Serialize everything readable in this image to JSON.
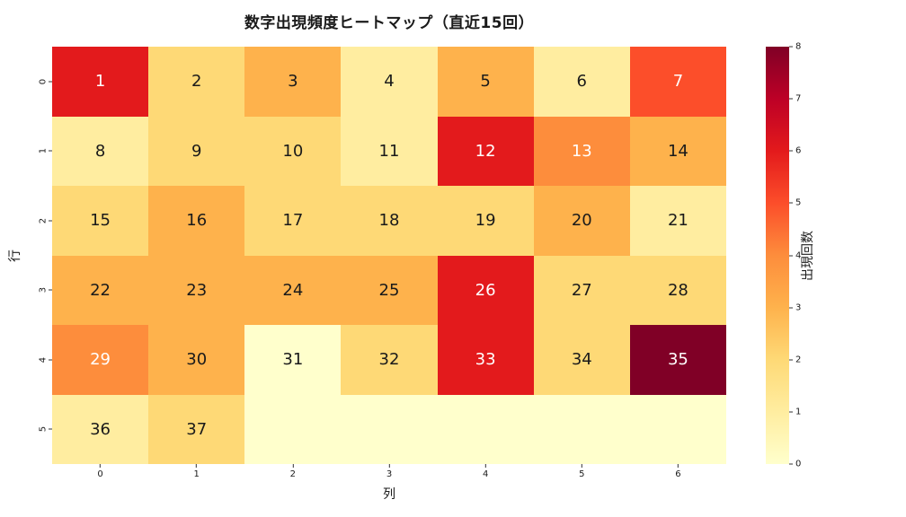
{
  "title": "数字出現頻度ヒートマップ（直近15回）",
  "background_color": "#ffffff",
  "tick_color": "#333333",
  "chart_data": {
    "type": "heatmap",
    "title": "数字出現頻度ヒートマップ（直近15回）",
    "xlabel": "列",
    "ylabel": "行",
    "x_tick_labels": [
      "0",
      "1",
      "2",
      "3",
      "4",
      "5",
      "6"
    ],
    "y_tick_labels": [
      "0",
      "1",
      "2",
      "3",
      "4",
      "5"
    ],
    "annotations": [
      [
        "1",
        "2",
        "3",
        "4",
        "5",
        "6",
        "7"
      ],
      [
        "8",
        "9",
        "10",
        "11",
        "12",
        "13",
        "14"
      ],
      [
        "15",
        "16",
        "17",
        "18",
        "19",
        "20",
        "21"
      ],
      [
        "22",
        "23",
        "24",
        "25",
        "26",
        "27",
        "28"
      ],
      [
        "29",
        "30",
        "31",
        "32",
        "33",
        "34",
        "35"
      ],
      [
        "36",
        "37",
        "",
        "",
        "",
        "",
        ""
      ]
    ],
    "values": [
      [
        6,
        2,
        3,
        1,
        3,
        1,
        5
      ],
      [
        1,
        2,
        2,
        1,
        6,
        4,
        3
      ],
      [
        2,
        3,
        2,
        2,
        2,
        3,
        1
      ],
      [
        3,
        3,
        3,
        3,
        6,
        2,
        2
      ],
      [
        4,
        3,
        0,
        2,
        6,
        2,
        8
      ],
      [
        1,
        2,
        0,
        0,
        0,
        0,
        0
      ]
    ],
    "vmin": 0,
    "vmax": 8,
    "colormap": "YlOrRd",
    "value_colors": {
      "0": "#ffffcc",
      "1": "#ffeda0",
      "2": "#fed976",
      "3": "#feb24c",
      "4": "#fd8d3c",
      "5": "#fc4e2a",
      "6": "#e31a1c",
      "7": "#bd0026",
      "8": "#800026"
    },
    "annotation_text_dark": "#1a1a1a",
    "annotation_text_light": "#ffffff",
    "text_light_threshold": 4,
    "colorbar": {
      "label": "出現回数",
      "tick_labels": [
        "0",
        "1",
        "2",
        "3",
        "4",
        "5",
        "6",
        "7",
        "8"
      ],
      "min": 0,
      "max": 8
    }
  }
}
